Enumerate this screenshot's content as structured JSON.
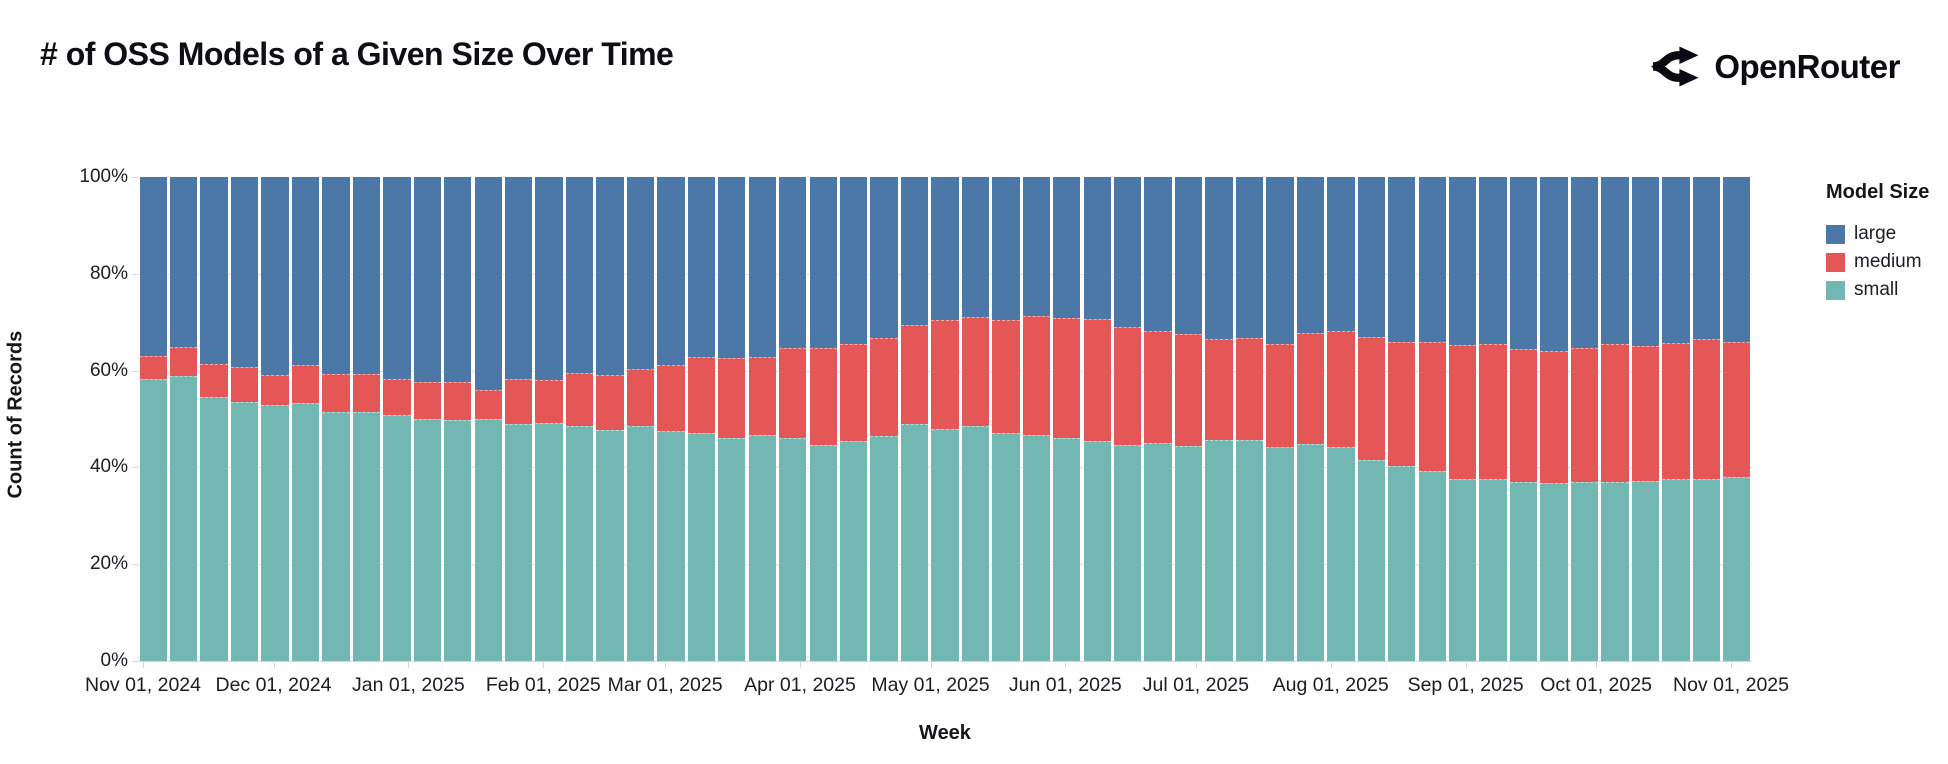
{
  "page": {
    "title": "# of OSS Models of a Given Size Over Time",
    "brand": "OpenRouter",
    "brand_icon": "fork-arrows-icon"
  },
  "legend": {
    "title": "Model Size",
    "items": [
      {
        "label": "large",
        "color": "#4c78a8"
      },
      {
        "label": "medium",
        "color": "#e45756"
      },
      {
        "label": "small",
        "color": "#72b7b2"
      }
    ]
  },
  "axes": {
    "x_title": "Week",
    "y_title": "Count of Records",
    "y_ticks": [
      {
        "label": "0%",
        "pct": 0
      },
      {
        "label": "20%",
        "pct": 20
      },
      {
        "label": "40%",
        "pct": 40
      },
      {
        "label": "60%",
        "pct": 60
      },
      {
        "label": "80%",
        "pct": 80
      },
      {
        "label": "100%",
        "pct": 100
      }
    ],
    "x_ticks": [
      {
        "label": "Nov 01, 2024",
        "day": 0
      },
      {
        "label": "Dec 01, 2024",
        "day": 30
      },
      {
        "label": "Jan 01, 2025",
        "day": 61
      },
      {
        "label": "Feb 01, 2025",
        "day": 92
      },
      {
        "label": "Mar 01, 2025",
        "day": 120
      },
      {
        "label": "Apr 01, 2025",
        "day": 151
      },
      {
        "label": "May 01, 2025",
        "day": 181
      },
      {
        "label": "Jun 01, 2025",
        "day": 212
      },
      {
        "label": "Jul 01, 2025",
        "day": 242
      },
      {
        "label": "Aug 01, 2025",
        "day": 273
      },
      {
        "label": "Sep 01, 2025",
        "day": 304
      },
      {
        "label": "Oct 01, 2025",
        "day": 334
      },
      {
        "label": "Nov 01, 2025",
        "day": 365
      }
    ]
  },
  "chart_data": {
    "type": "bar",
    "variant": "stacked-normalized-100pct",
    "title": "# of OSS Models of a Given Size Over Time",
    "xlabel": "Week",
    "ylabel": "Count of Records",
    "ylim": [
      0,
      100
    ],
    "grid": true,
    "legend_title": "Model Size",
    "legend_position": "right",
    "stack_order_bottom_to_top": [
      "small",
      "medium",
      "large"
    ],
    "colors": {
      "large": "#4c78a8",
      "medium": "#e45756",
      "small": "#72b7b2"
    },
    "weeks": [
      {
        "week": "2024-10-27",
        "small": 58.3,
        "medium": 4.8,
        "large": 36.9
      },
      {
        "week": "2024-11-03",
        "small": 58.8,
        "medium": 6.1,
        "large": 35.1
      },
      {
        "week": "2024-11-10",
        "small": 54.6,
        "medium": 6.7,
        "large": 38.7
      },
      {
        "week": "2024-11-17",
        "small": 53.6,
        "medium": 7.1,
        "large": 39.3
      },
      {
        "week": "2024-11-24",
        "small": 52.8,
        "medium": 6.3,
        "large": 40.9
      },
      {
        "week": "2024-12-01",
        "small": 53.3,
        "medium": 7.8,
        "large": 38.9
      },
      {
        "week": "2024-12-08",
        "small": 51.5,
        "medium": 7.8,
        "large": 40.7
      },
      {
        "week": "2024-12-15",
        "small": 51.4,
        "medium": 7.9,
        "large": 40.7
      },
      {
        "week": "2024-12-22",
        "small": 50.8,
        "medium": 7.5,
        "large": 41.7
      },
      {
        "week": "2024-12-29",
        "small": 50.0,
        "medium": 7.6,
        "large": 42.4
      },
      {
        "week": "2025-01-05",
        "small": 49.7,
        "medium": 7.9,
        "large": 42.4
      },
      {
        "week": "2025-01-12",
        "small": 49.9,
        "medium": 6.0,
        "large": 44.1
      },
      {
        "week": "2025-01-19",
        "small": 49.0,
        "medium": 9.3,
        "large": 41.7
      },
      {
        "week": "2025-01-26",
        "small": 49.1,
        "medium": 8.9,
        "large": 42.0
      },
      {
        "week": "2025-02-02",
        "small": 48.5,
        "medium": 11.0,
        "large": 40.5
      },
      {
        "week": "2025-02-09",
        "small": 47.7,
        "medium": 11.3,
        "large": 41.0
      },
      {
        "week": "2025-02-16",
        "small": 48.6,
        "medium": 11.8,
        "large": 39.6
      },
      {
        "week": "2025-02-23",
        "small": 47.6,
        "medium": 13.5,
        "large": 38.9
      },
      {
        "week": "2025-03-02",
        "small": 47.1,
        "medium": 15.8,
        "large": 37.1
      },
      {
        "week": "2025-03-09",
        "small": 46.0,
        "medium": 16.6,
        "large": 37.4
      },
      {
        "week": "2025-03-16",
        "small": 46.7,
        "medium": 16.1,
        "large": 37.2
      },
      {
        "week": "2025-03-23",
        "small": 46.0,
        "medium": 18.7,
        "large": 35.3
      },
      {
        "week": "2025-03-30",
        "small": 44.6,
        "medium": 20.1,
        "large": 35.3
      },
      {
        "week": "2025-04-06",
        "small": 45.5,
        "medium": 19.9,
        "large": 34.6
      },
      {
        "week": "2025-04-13",
        "small": 46.5,
        "medium": 20.2,
        "large": 33.3
      },
      {
        "week": "2025-04-20",
        "small": 49.0,
        "medium": 20.4,
        "large": 30.6
      },
      {
        "week": "2025-04-27",
        "small": 47.9,
        "medium": 22.6,
        "large": 29.5
      },
      {
        "week": "2025-05-04",
        "small": 48.5,
        "medium": 22.5,
        "large": 29.0
      },
      {
        "week": "2025-05-11",
        "small": 47.2,
        "medium": 23.3,
        "large": 29.5
      },
      {
        "week": "2025-05-18",
        "small": 46.7,
        "medium": 24.5,
        "large": 28.8
      },
      {
        "week": "2025-05-25",
        "small": 46.0,
        "medium": 24.9,
        "large": 29.1
      },
      {
        "week": "2025-06-01",
        "small": 45.5,
        "medium": 25.1,
        "large": 29.4
      },
      {
        "week": "2025-06-08",
        "small": 44.6,
        "medium": 24.4,
        "large": 31.0
      },
      {
        "week": "2025-06-15",
        "small": 45.0,
        "medium": 23.2,
        "large": 31.8
      },
      {
        "week": "2025-06-22",
        "small": 44.5,
        "medium": 23.0,
        "large": 32.5
      },
      {
        "week": "2025-06-29",
        "small": 45.7,
        "medium": 20.9,
        "large": 33.4
      },
      {
        "week": "2025-07-06",
        "small": 45.6,
        "medium": 21.2,
        "large": 33.2
      },
      {
        "week": "2025-07-13",
        "small": 44.3,
        "medium": 21.3,
        "large": 34.4
      },
      {
        "week": "2025-07-20",
        "small": 44.8,
        "medium": 23.0,
        "large": 32.2
      },
      {
        "week": "2025-07-27",
        "small": 44.3,
        "medium": 23.8,
        "large": 31.9
      },
      {
        "week": "2025-08-03",
        "small": 41.5,
        "medium": 25.4,
        "large": 33.1
      },
      {
        "week": "2025-08-10",
        "small": 40.3,
        "medium": 25.6,
        "large": 34.1
      },
      {
        "week": "2025-08-17",
        "small": 39.3,
        "medium": 26.7,
        "large": 34.0
      },
      {
        "week": "2025-08-24",
        "small": 37.6,
        "medium": 27.6,
        "large": 34.8
      },
      {
        "week": "2025-08-31",
        "small": 37.7,
        "medium": 27.7,
        "large": 34.6
      },
      {
        "week": "2025-09-07",
        "small": 37.0,
        "medium": 27.5,
        "large": 35.5
      },
      {
        "week": "2025-09-14",
        "small": 36.7,
        "medium": 27.3,
        "large": 36.0
      },
      {
        "week": "2025-09-21",
        "small": 37.0,
        "medium": 27.7,
        "large": 35.3
      },
      {
        "week": "2025-09-28",
        "small": 37.0,
        "medium": 28.4,
        "large": 34.6
      },
      {
        "week": "2025-10-05",
        "small": 37.2,
        "medium": 27.9,
        "large": 34.9
      },
      {
        "week": "2025-10-12",
        "small": 37.6,
        "medium": 28.2,
        "large": 34.2
      },
      {
        "week": "2025-10-19",
        "small": 37.6,
        "medium": 28.9,
        "large": 33.5
      },
      {
        "week": "2025-10-26",
        "small": 38.1,
        "medium": 27.9,
        "large": 34.0
      }
    ]
  }
}
